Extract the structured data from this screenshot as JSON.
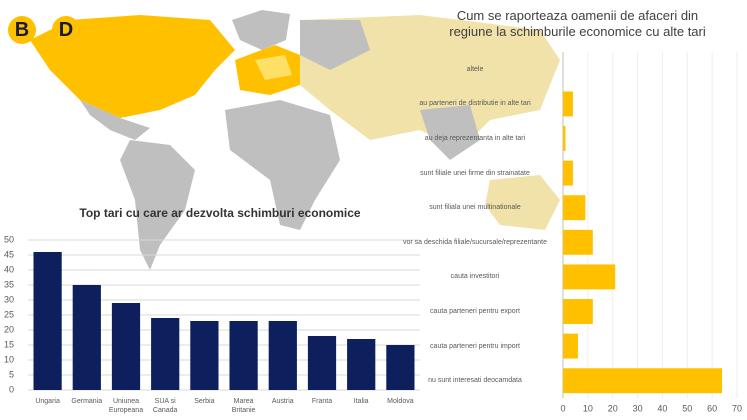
{
  "logo": [
    "B",
    "D"
  ],
  "chart_data": [
    {
      "type": "bar",
      "title": "Top tari cu care ar dezvolta schimburi economice",
      "categories": [
        "Ungaria",
        "Germania",
        "Uniunea Europeana",
        "SUA si Canada",
        "Serbia",
        "Marea Britanie",
        "Austria",
        "Franta",
        "Italia",
        "Moldova"
      ],
      "values": [
        46,
        35,
        29,
        24,
        23,
        23,
        23,
        18,
        17,
        15
      ],
      "color": "#0d1f5c",
      "ylim": [
        0,
        50
      ],
      "yticks": [
        0,
        5,
        10,
        15,
        20,
        25,
        30,
        35,
        40,
        45,
        50
      ],
      "grid": true
    },
    {
      "type": "hbar",
      "title": "Cum se raporteaza oamenii de afaceri din regiune la schimburile economice cu alte tari",
      "categories": [
        "altele",
        "au parteneri de distributie in alte tari",
        "au deja reprezentanta in alte tari",
        "sunt filiale unei firme din strainatate",
        "sunt filiala unei multinationale",
        "vor sa deschida filiale/sucursale/reprezentante",
        "cauta investitori",
        "cauta parteneri pentru export",
        "cauta parteneri pentru import",
        "nu sunt interesati deocamdata"
      ],
      "values": [
        0,
        4,
        1,
        4,
        9,
        12,
        21,
        12,
        6,
        64
      ],
      "color": "#ffc000",
      "xlim": [
        0,
        70
      ],
      "xticks": [
        0,
        10,
        20,
        30,
        40,
        50,
        60,
        70
      ],
      "grid": true
    }
  ]
}
